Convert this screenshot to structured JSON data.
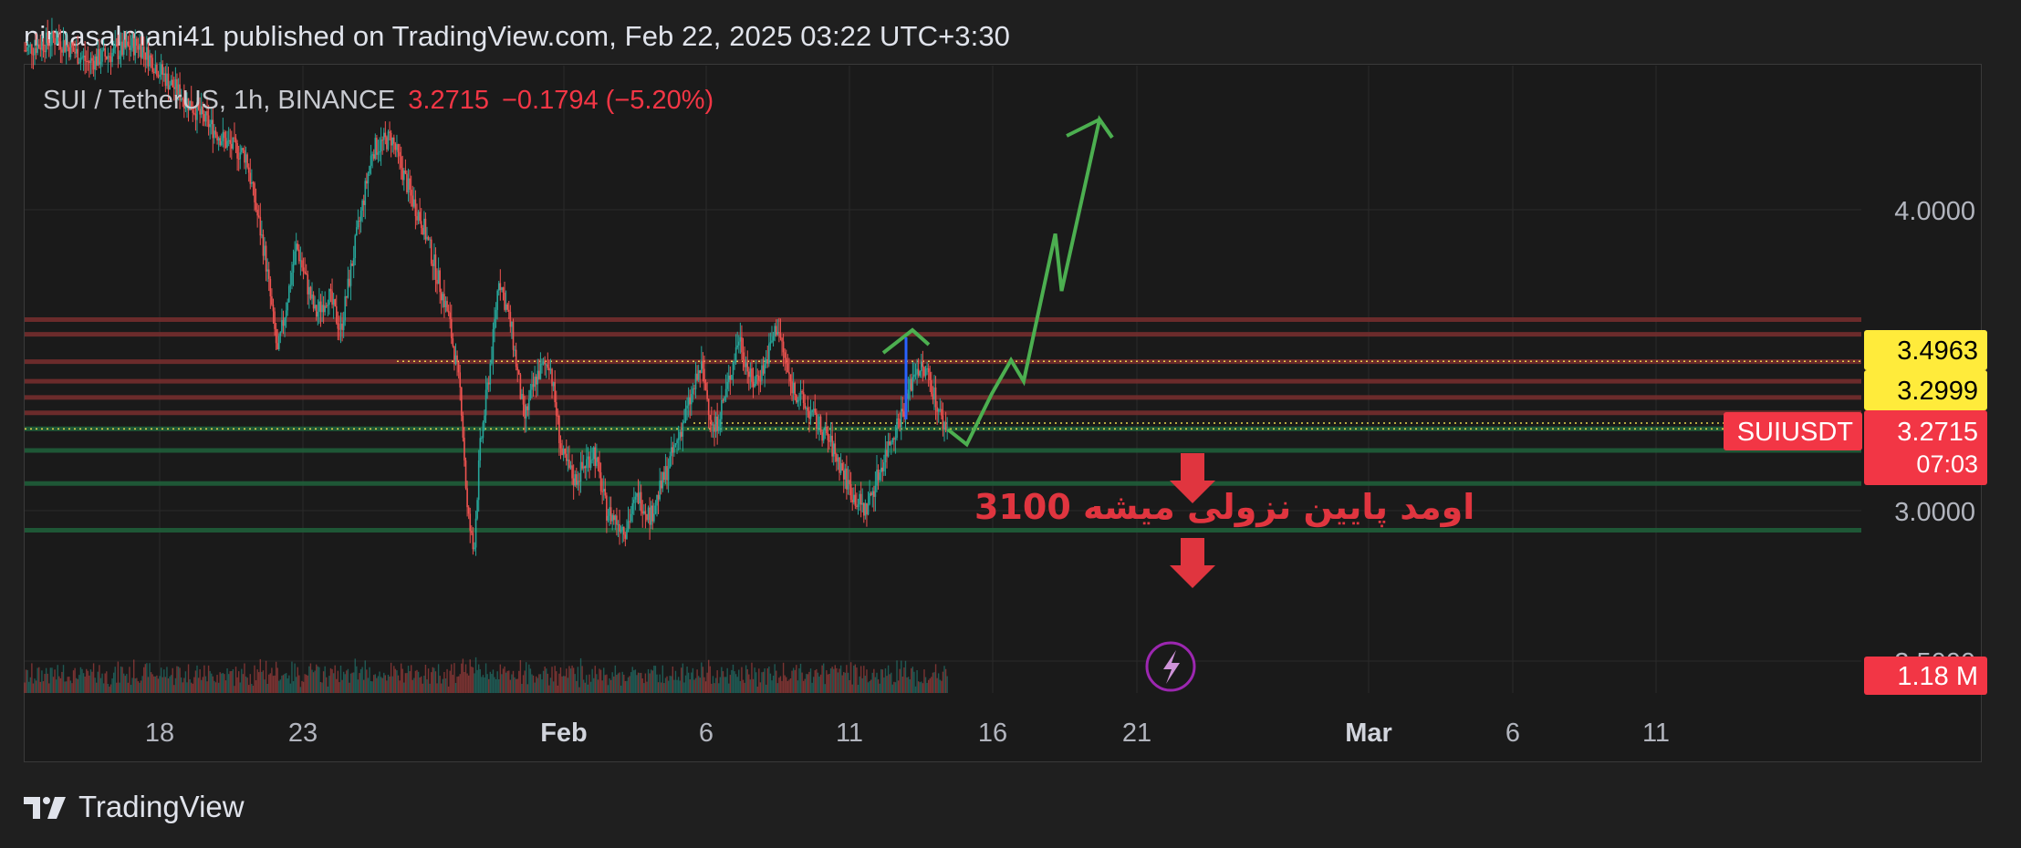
{
  "header": {
    "publish_text": "nimasalmani41 published on TradingView.com, Feb 22, 2025 03:22 UTC+3:30"
  },
  "symbol": {
    "name": "SUI / TetherUS, 1h, BINANCE",
    "price": "3.2715",
    "change": "−0.1794 (−5.20%)"
  },
  "annotation": {
    "text": "اومد پایین نزولی میشه 3100"
  },
  "footer": {
    "brand": "TradingView"
  },
  "price_tags": {
    "level1": "3.4963",
    "level2": "3.2999",
    "symbol_tag": "SUIUSDT",
    "last_price": "3.2715",
    "countdown": "07:03",
    "volume": "1.18 M"
  },
  "colors": {
    "bull": "#26a69a",
    "bear": "#ef5350",
    "resistance": "#7a2e2e",
    "support": "#1f5e3a",
    "arrow_up": "#4caf50",
    "arrow_down": "#e0353f",
    "yellow_tag": "#ffeb3b",
    "red_tag": "#f23645"
  },
  "chart_data": {
    "type": "candlestick",
    "timeframe": "1h",
    "x_ticks": [
      "18",
      "23",
      "Feb",
      "6",
      "11",
      "16",
      "21",
      "Mar",
      "6",
      "11"
    ],
    "y_ticks": [
      4.0,
      3.0,
      2.5
    ],
    "y_tick_labels": [
      "4.0000",
      "3.0000",
      "2.5000"
    ],
    "ylim": [
      2.39,
      4.66
    ],
    "price_path": [
      [
        0,
        4.53
      ],
      [
        5,
        4.57
      ],
      [
        10,
        4.49
      ],
      [
        18,
        4.55
      ],
      [
        23,
        4.42
      ],
      [
        28,
        4.31
      ],
      [
        32,
        4.22
      ],
      [
        35,
        4.18
      ],
      [
        38,
        3.85
      ],
      [
        40,
        3.52
      ],
      [
        43,
        3.88
      ],
      [
        46,
        3.65
      ],
      [
        48,
        3.72
      ],
      [
        50,
        3.6
      ],
      [
        52,
        3.85
      ],
      [
        55,
        4.2
      ],
      [
        58,
        4.24
      ],
      [
        61,
        4.05
      ],
      [
        63,
        3.95
      ],
      [
        65,
        3.8
      ],
      [
        67,
        3.65
      ],
      [
        69,
        3.38
      ],
      [
        70,
        3.0
      ],
      [
        71,
        2.86
      ],
      [
        72,
        3.2
      ],
      [
        74,
        3.55
      ],
      [
        75,
        3.78
      ],
      [
        77,
        3.6
      ],
      [
        79,
        3.3
      ],
      [
        81,
        3.45
      ],
      [
        83,
        3.5
      ],
      [
        85,
        3.18
      ],
      [
        87,
        3.1
      ],
      [
        90,
        3.2
      ],
      [
        92,
        3.0
      ],
      [
        95,
        2.94
      ],
      [
        97,
        3.05
      ],
      [
        99,
        2.98
      ],
      [
        101,
        3.1
      ],
      [
        103,
        3.22
      ],
      [
        105,
        3.35
      ],
      [
        107,
        3.48
      ],
      [
        109,
        3.26
      ],
      [
        111,
        3.4
      ],
      [
        113,
        3.58
      ],
      [
        115,
        3.42
      ],
      [
        117,
        3.48
      ],
      [
        119,
        3.62
      ],
      [
        121,
        3.43
      ],
      [
        123,
        3.36
      ],
      [
        125,
        3.3
      ],
      [
        127,
        3.24
      ],
      [
        129,
        3.15
      ],
      [
        131,
        3.05
      ],
      [
        133,
        3.0
      ],
      [
        135,
        3.12
      ],
      [
        137,
        3.24
      ],
      [
        139,
        3.34
      ],
      [
        141,
        3.48
      ],
      [
        143,
        3.45
      ],
      [
        145,
        3.3
      ],
      [
        146,
        3.27
      ]
    ],
    "resistance_lines": [
      3.635,
      3.586,
      3.495,
      3.43,
      3.376,
      3.325
    ],
    "support_lines": [
      3.272,
      3.2,
      3.09,
      2.935
    ],
    "dotted_levels": [
      3.4963,
      3.2999
    ],
    "projection_up": [
      [
        146,
        3.27
      ],
      [
        149,
        3.22
      ],
      [
        153,
        3.39
      ],
      [
        156,
        3.5
      ],
      [
        158,
        3.43
      ],
      [
        163,
        3.92
      ],
      [
        164,
        3.73
      ],
      [
        170,
        4.3
      ],
      [
        172,
        4.24
      ]
    ],
    "last_price": 3.2715,
    "volume_last": "1.18 M"
  }
}
